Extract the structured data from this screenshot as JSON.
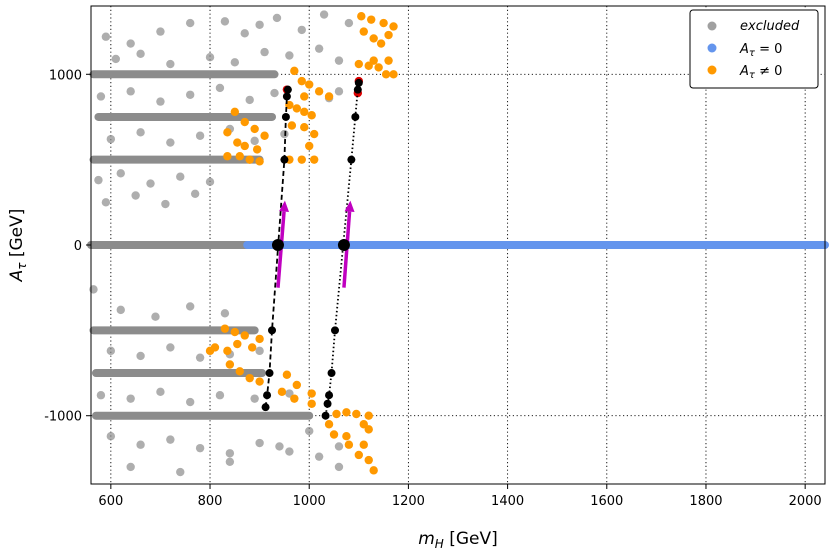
{
  "chart_data": {
    "type": "scatter",
    "xlabel": "m",
    "xlabel_sub": "H",
    "xlabel_unit": " [GeV]",
    "ylabel": "A",
    "ylabel_sub": "τ",
    "ylabel_unit": " [GeV]",
    "xlim": [
      560,
      2040
    ],
    "ylim": [
      -1400,
      1400
    ],
    "xticks": [
      600,
      800,
      1000,
      1200,
      1400,
      1600,
      1800,
      2000
    ],
    "yticks": [
      -1000,
      0,
      1000
    ],
    "xtick_labels": [
      "600",
      "800",
      "1000",
      "1200",
      "1400",
      "1600",
      "1800",
      "2000"
    ],
    "ytick_labels": [
      "-1000",
      "0",
      "1000"
    ],
    "grid": "dotted",
    "legend": {
      "position": "top-right",
      "entries": [
        {
          "label": "excluded",
          "color": "#a0a0a0",
          "style": "italic"
        },
        {
          "label": "A",
          "sub": "τ",
          "rel": " = 0",
          "color": "#6495ed"
        },
        {
          "label": "A",
          "sub": "τ",
          "rel": " ≠ 0",
          "color": "#ff9900"
        }
      ]
    },
    "series": [
      {
        "name": "excluded",
        "color": "#8c8c8c",
        "bands": [
          {
            "y": 1000,
            "x": [
              565,
              930
            ]
          },
          {
            "y": 750,
            "x": [
              575,
              925
            ]
          },
          {
            "y": 500,
            "x": [
              565,
              900
            ]
          },
          {
            "y": 0,
            "x": [
              560,
              875
            ]
          },
          {
            "y": -500,
            "x": [
              565,
              890
            ]
          },
          {
            "y": -750,
            "x": [
              570,
              905
            ]
          },
          {
            "y": -1000,
            "x": [
              570,
              1000
            ]
          }
        ],
        "scatter": [
          [
            590,
            1220
          ],
          [
            640,
            1180
          ],
          [
            700,
            1250
          ],
          [
            760,
            1300
          ],
          [
            830,
            1310
          ],
          [
            870,
            1240
          ],
          [
            900,
            1290
          ],
          [
            935,
            1330
          ],
          [
            985,
            1260
          ],
          [
            1030,
            1350
          ],
          [
            1080,
            1300
          ],
          [
            610,
            1090
          ],
          [
            660,
            1120
          ],
          [
            720,
            1060
          ],
          [
            800,
            1100
          ],
          [
            850,
            1070
          ],
          [
            910,
            1130
          ],
          [
            960,
            1110
          ],
          [
            1020,
            1150
          ],
          [
            1060,
            1080
          ],
          [
            580,
            870
          ],
          [
            640,
            900
          ],
          [
            700,
            840
          ],
          [
            760,
            880
          ],
          [
            820,
            920
          ],
          [
            880,
            850
          ],
          [
            930,
            890
          ],
          [
            1040,
            860
          ],
          [
            1060,
            900
          ],
          [
            600,
            620
          ],
          [
            660,
            660
          ],
          [
            720,
            600
          ],
          [
            780,
            640
          ],
          [
            840,
            680
          ],
          [
            890,
            610
          ],
          [
            950,
            650
          ],
          [
            575,
            380
          ],
          [
            620,
            420
          ],
          [
            680,
            360
          ],
          [
            740,
            400
          ],
          [
            800,
            370
          ],
          [
            590,
            250
          ],
          [
            650,
            290
          ],
          [
            710,
            240
          ],
          [
            770,
            300
          ],
          [
            565,
            -260
          ],
          [
            620,
            -380
          ],
          [
            690,
            -420
          ],
          [
            760,
            -360
          ],
          [
            830,
            -400
          ],
          [
            600,
            -620
          ],
          [
            660,
            -650
          ],
          [
            720,
            -600
          ],
          [
            780,
            -660
          ],
          [
            840,
            -640
          ],
          [
            900,
            -620
          ],
          [
            580,
            -880
          ],
          [
            640,
            -900
          ],
          [
            700,
            -860
          ],
          [
            760,
            -920
          ],
          [
            820,
            -880
          ],
          [
            890,
            -900
          ],
          [
            960,
            -870
          ],
          [
            1000,
            -1090
          ],
          [
            600,
            -1120
          ],
          [
            660,
            -1170
          ],
          [
            720,
            -1140
          ],
          [
            780,
            -1190
          ],
          [
            840,
            -1220
          ],
          [
            900,
            -1160
          ],
          [
            960,
            -1210
          ],
          [
            1020,
            -1240
          ],
          [
            1060,
            -1300
          ],
          [
            640,
            -1300
          ],
          [
            740,
            -1330
          ],
          [
            840,
            -1270
          ],
          [
            940,
            -1180
          ],
          [
            1060,
            -1180
          ]
        ]
      },
      {
        "name": "A_tau = 0",
        "color": "#6495ed",
        "bands": [
          {
            "y": 0,
            "x": [
              875,
              2040
            ]
          }
        ]
      },
      {
        "name": "A_tau != 0",
        "color": "#ff9900",
        "scatter": [
          [
            1105,
            1340
          ],
          [
            1125,
            1320
          ],
          [
            1150,
            1300
          ],
          [
            1170,
            1280
          ],
          [
            1160,
            1230
          ],
          [
            1130,
            1210
          ],
          [
            1145,
            1180
          ],
          [
            1110,
            1250
          ],
          [
            1100,
            1060
          ],
          [
            1120,
            1050
          ],
          [
            1140,
            1040
          ],
          [
            1155,
            1000
          ],
          [
            1170,
            1000
          ],
          [
            1160,
            1080
          ],
          [
            1130,
            1080
          ],
          [
            970,
            1020
          ],
          [
            985,
            960
          ],
          [
            1000,
            940
          ],
          [
            1020,
            900
          ],
          [
            1040,
            870
          ],
          [
            990,
            870
          ],
          [
            960,
            820
          ],
          [
            975,
            800
          ],
          [
            990,
            780
          ],
          [
            1005,
            760
          ],
          [
            965,
            700
          ],
          [
            990,
            690
          ],
          [
            1010,
            650
          ],
          [
            1000,
            580
          ],
          [
            850,
            780
          ],
          [
            870,
            720
          ],
          [
            890,
            680
          ],
          [
            910,
            640
          ],
          [
            835,
            660
          ],
          [
            855,
            600
          ],
          [
            895,
            560
          ],
          [
            870,
            580
          ],
          [
            835,
            520
          ],
          [
            860,
            520
          ],
          [
            880,
            500
          ],
          [
            900,
            490
          ],
          [
            960,
            500
          ],
          [
            985,
            500
          ],
          [
            1010,
            500
          ],
          [
            830,
            -490
          ],
          [
            850,
            -510
          ],
          [
            870,
            -530
          ],
          [
            900,
            -550
          ],
          [
            855,
            -580
          ],
          [
            885,
            -600
          ],
          [
            810,
            -600
          ],
          [
            800,
            -620
          ],
          [
            835,
            -620
          ],
          [
            840,
            -700
          ],
          [
            860,
            -740
          ],
          [
            880,
            -780
          ],
          [
            900,
            -800
          ],
          [
            955,
            -760
          ],
          [
            975,
            -820
          ],
          [
            945,
            -860
          ],
          [
            970,
            -900
          ],
          [
            1005,
            -870
          ],
          [
            1005,
            -930
          ],
          [
            1055,
            -990
          ],
          [
            1075,
            -980
          ],
          [
            1095,
            -990
          ],
          [
            1110,
            -1050
          ],
          [
            1120,
            -1080
          ],
          [
            1075,
            -1120
          ],
          [
            1080,
            -1170
          ],
          [
            1110,
            -1170
          ],
          [
            1100,
            -1230
          ],
          [
            1120,
            -1260
          ],
          [
            1130,
            -1320
          ],
          [
            1040,
            -1050
          ],
          [
            1050,
            -1110
          ],
          [
            1120,
            -1000
          ]
        ]
      },
      {
        "name": "red",
        "color": "#dd0000",
        "scatter": [
          [
            955,
            910
          ],
          [
            1100,
            960
          ],
          [
            1098,
            890
          ]
        ]
      },
      {
        "name": "track-1",
        "color": "#000000",
        "line": "dashed",
        "points": [
          [
            912,
            -950
          ],
          [
            915,
            -880
          ],
          [
            920,
            -750
          ],
          [
            925,
            -500
          ],
          [
            950,
            500
          ],
          [
            953,
            750
          ],
          [
            955,
            870
          ],
          [
            957,
            910
          ]
        ]
      },
      {
        "name": "track-2",
        "color": "#000000",
        "line": "dotted",
        "points": [
          [
            1033,
            -1000
          ],
          [
            1037,
            -930
          ],
          [
            1040,
            -880
          ],
          [
            1045,
            -750
          ],
          [
            1052,
            -500
          ],
          [
            1085,
            500
          ],
          [
            1093,
            750
          ],
          [
            1098,
            910
          ],
          [
            1100,
            950
          ]
        ]
      }
    ],
    "arrows": [
      {
        "from": [
          937,
          -250
        ],
        "to": [
          951,
          260
        ],
        "color": "#c000c0"
      },
      {
        "from": [
          1070,
          -250
        ],
        "to": [
          1083,
          260
        ],
        "color": "#c000c0"
      }
    ],
    "highlight_points": [
      {
        "x": 937,
        "y": 0,
        "color": "#000000"
      },
      {
        "x": 1070,
        "y": 0,
        "color": "#000000"
      }
    ]
  }
}
